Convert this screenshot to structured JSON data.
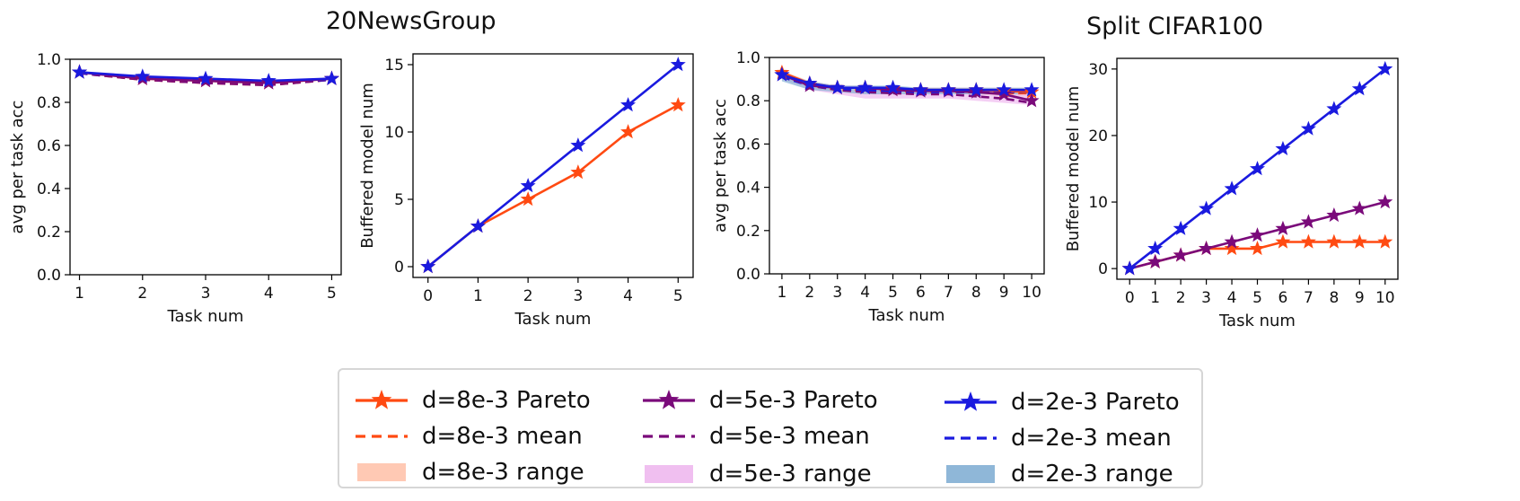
{
  "groups": [
    {
      "title": "20NewsGroup"
    },
    {
      "title": "Split CIFAR100"
    }
  ],
  "colors": {
    "d8": "#ff4a12",
    "d5": "#7a0a7a",
    "d2": "#1a1adf",
    "d8_range": "#ffc9b4",
    "d5_range": "#f0bff0",
    "d2_range": "#8fb7d8"
  },
  "legend": {
    "entries": [
      {
        "label": "d=8e-3 Pareto",
        "style": "pareto",
        "color": "#ff4a12"
      },
      {
        "label": "d=5e-3 Pareto",
        "style": "pareto",
        "color": "#7a0a7a"
      },
      {
        "label": "d=2e-3 Pareto",
        "style": "pareto",
        "color": "#1a1adf"
      },
      {
        "label": "d=8e-3 mean",
        "style": "mean",
        "color": "#ff4a12"
      },
      {
        "label": "d=5e-3 mean",
        "style": "mean",
        "color": "#7a0a7a"
      },
      {
        "label": "d=2e-3 mean",
        "style": "mean",
        "color": "#1a1adf"
      },
      {
        "label": "d=8e-3 range",
        "style": "range",
        "color": "#ffc9b4"
      },
      {
        "label": "d=5e-3 range",
        "style": "range",
        "color": "#f0bff0"
      },
      {
        "label": "d=2e-3 range",
        "style": "range",
        "color": "#8fb7d8"
      }
    ]
  },
  "chart_data": [
    {
      "type": "line",
      "group": "20NewsGroup",
      "xlabel": "Task num",
      "ylabel": "avg per task acc",
      "xlim": [
        0.85,
        5.15
      ],
      "ylim": [
        0.0,
        1.0
      ],
      "xticks": [
        1,
        2,
        3,
        4,
        5
      ],
      "yticks": [
        0.0,
        0.2,
        0.4,
        0.6,
        0.8,
        1.0
      ],
      "ytick_labels": [
        "0.0",
        "0.2",
        "0.4",
        "0.6",
        "0.8",
        "1.0"
      ],
      "series": [
        {
          "name": "d=8e-3 Pareto",
          "kind": "pareto",
          "color": "#ff4a12",
          "x": [
            1,
            2,
            3,
            4,
            5
          ],
          "values": [
            0.94,
            0.91,
            0.9,
            0.89,
            0.91
          ]
        },
        {
          "name": "d=8e-3 mean",
          "kind": "mean",
          "color": "#ff4a12",
          "x": [
            1,
            2,
            3,
            4,
            5
          ],
          "values": [
            0.935,
            0.905,
            0.89,
            0.88,
            0.905
          ]
        },
        {
          "name": "d=5e-3 Pareto",
          "kind": "pareto",
          "color": "#7a0a7a",
          "x": [
            1,
            2,
            3,
            4,
            5
          ],
          "values": [
            0.94,
            0.91,
            0.9,
            0.89,
            0.91
          ]
        },
        {
          "name": "d=5e-3 mean",
          "kind": "mean",
          "color": "#7a0a7a",
          "x": [
            1,
            2,
            3,
            4,
            5
          ],
          "values": [
            0.935,
            0.905,
            0.89,
            0.88,
            0.905
          ]
        },
        {
          "name": "d=2e-3 Pareto",
          "kind": "pareto",
          "color": "#1a1adf",
          "x": [
            1,
            2,
            3,
            4,
            5
          ],
          "values": [
            0.94,
            0.92,
            0.91,
            0.9,
            0.91
          ]
        },
        {
          "name": "d=2e-3 mean",
          "kind": "mean",
          "color": "#1a1adf",
          "x": [
            1,
            2,
            3,
            4,
            5
          ],
          "values": [
            0.935,
            0.915,
            0.9,
            0.895,
            0.905
          ]
        }
      ]
    },
    {
      "type": "line",
      "group": "20NewsGroup",
      "xlabel": "Task num",
      "ylabel": "Buffered model num",
      "xlim": [
        -0.3,
        5.3
      ],
      "ylim": [
        -0.8,
        15.8
      ],
      "xticks": [
        0,
        1,
        2,
        3,
        4,
        5
      ],
      "yticks": [
        0,
        5,
        10,
        15
      ],
      "series": [
        {
          "name": "d=8e-3 Pareto",
          "kind": "pareto",
          "color": "#ff4a12",
          "x": [
            0,
            1,
            2,
            3,
            4,
            5
          ],
          "values": [
            0,
            3,
            5,
            7,
            10,
            12
          ]
        },
        {
          "name": "d=2e-3 Pareto",
          "kind": "pareto",
          "color": "#1a1adf",
          "x": [
            0,
            1,
            2,
            3,
            4,
            5
          ],
          "values": [
            0,
            3,
            6,
            9,
            12,
            15
          ]
        }
      ]
    },
    {
      "type": "line",
      "group": "Split CIFAR100",
      "xlabel": "Task num",
      "ylabel": "avg per task acc",
      "xlim": [
        0.55,
        10.45
      ],
      "ylim": [
        0.0,
        1.0
      ],
      "xticks": [
        1,
        2,
        3,
        4,
        5,
        6,
        7,
        8,
        9,
        10
      ],
      "yticks": [
        0.0,
        0.2,
        0.4,
        0.6,
        0.8,
        1.0
      ],
      "ytick_labels": [
        "0.0",
        "0.2",
        "0.4",
        "0.6",
        "0.8",
        "1.0"
      ],
      "series": [
        {
          "name": "d=8e-3 range",
          "kind": "range",
          "color": "#ffc9b4",
          "x": [
            1,
            2,
            3,
            4,
            5,
            6,
            7,
            8,
            9,
            10
          ],
          "low": [
            0.9,
            0.86,
            0.84,
            0.83,
            0.83,
            0.83,
            0.83,
            0.83,
            0.82,
            0.82
          ],
          "high": [
            0.94,
            0.89,
            0.87,
            0.87,
            0.86,
            0.86,
            0.86,
            0.86,
            0.86,
            0.86
          ]
        },
        {
          "name": "d=5e-3 range",
          "kind": "range",
          "color": "#f0bff0",
          "x": [
            1,
            2,
            3,
            4,
            5,
            6,
            7,
            8,
            9,
            10
          ],
          "low": [
            0.9,
            0.85,
            0.83,
            0.81,
            0.81,
            0.81,
            0.81,
            0.8,
            0.79,
            0.78
          ],
          "high": [
            0.93,
            0.89,
            0.87,
            0.87,
            0.86,
            0.86,
            0.86,
            0.86,
            0.86,
            0.85
          ]
        },
        {
          "name": "d=2e-3 range",
          "kind": "range",
          "color": "#8fb7d8",
          "x": [
            1,
            2,
            3,
            4,
            5,
            6,
            7,
            8,
            9,
            10
          ],
          "low": [
            0.89,
            0.85,
            0.84,
            0.83,
            0.83,
            0.83,
            0.83,
            0.83,
            0.83,
            0.83
          ],
          "high": [
            0.93,
            0.89,
            0.87,
            0.87,
            0.87,
            0.86,
            0.86,
            0.86,
            0.86,
            0.86
          ]
        },
        {
          "name": "d=8e-3 mean",
          "kind": "mean",
          "color": "#ff4a12",
          "x": [
            1,
            2,
            3,
            4,
            5,
            6,
            7,
            8,
            9,
            10
          ],
          "values": [
            0.92,
            0.87,
            0.85,
            0.85,
            0.845,
            0.84,
            0.84,
            0.84,
            0.835,
            0.835
          ]
        },
        {
          "name": "d=5e-3 mean",
          "kind": "mean",
          "color": "#7a0a7a",
          "x": [
            1,
            2,
            3,
            4,
            5,
            6,
            7,
            8,
            9,
            10
          ],
          "values": [
            0.91,
            0.87,
            0.85,
            0.84,
            0.835,
            0.83,
            0.83,
            0.82,
            0.81,
            0.79
          ]
        },
        {
          "name": "d=2e-3 mean",
          "kind": "mean",
          "color": "#1a1adf",
          "x": [
            1,
            2,
            3,
            4,
            5,
            6,
            7,
            8,
            9,
            10
          ],
          "values": [
            0.91,
            0.87,
            0.855,
            0.85,
            0.845,
            0.84,
            0.84,
            0.84,
            0.84,
            0.84
          ]
        },
        {
          "name": "d=8e-3 Pareto",
          "kind": "pareto",
          "color": "#ff4a12",
          "x": [
            1,
            2,
            3,
            4,
            5,
            6,
            7,
            8,
            9,
            10
          ],
          "values": [
            0.93,
            0.88,
            0.86,
            0.86,
            0.855,
            0.85,
            0.85,
            0.85,
            0.845,
            0.84
          ]
        },
        {
          "name": "d=5e-3 Pareto",
          "kind": "pareto",
          "color": "#7a0a7a",
          "x": [
            1,
            2,
            3,
            4,
            5,
            6,
            7,
            8,
            9,
            10
          ],
          "values": [
            0.92,
            0.87,
            0.86,
            0.86,
            0.85,
            0.845,
            0.845,
            0.84,
            0.83,
            0.8
          ]
        },
        {
          "name": "d=2e-3 Pareto",
          "kind": "pareto",
          "color": "#1a1adf",
          "x": [
            1,
            2,
            3,
            4,
            5,
            6,
            7,
            8,
            9,
            10
          ],
          "values": [
            0.92,
            0.88,
            0.86,
            0.86,
            0.86,
            0.85,
            0.85,
            0.85,
            0.85,
            0.85
          ]
        }
      ]
    },
    {
      "type": "line",
      "group": "Split CIFAR100",
      "xlabel": "Task num",
      "ylabel": "Buffered model num",
      "xlim": [
        -0.5,
        10.5
      ],
      "ylim": [
        -1.6,
        31.6
      ],
      "xticks": [
        0,
        1,
        2,
        3,
        4,
        5,
        6,
        7,
        8,
        9,
        10
      ],
      "yticks": [
        0,
        10,
        20,
        30
      ],
      "series": [
        {
          "name": "d=8e-3 Pareto",
          "kind": "pareto",
          "color": "#ff4a12",
          "x": [
            0,
            1,
            2,
            3,
            4,
            5,
            6,
            7,
            8,
            9,
            10
          ],
          "values": [
            0,
            1,
            2,
            3,
            3,
            3,
            4,
            4,
            4,
            4,
            4
          ]
        },
        {
          "name": "d=5e-3 Pareto",
          "kind": "pareto",
          "color": "#7a0a7a",
          "x": [
            0,
            1,
            2,
            3,
            4,
            5,
            6,
            7,
            8,
            9,
            10
          ],
          "values": [
            0,
            1,
            2,
            3,
            4,
            5,
            6,
            7,
            8,
            9,
            10
          ]
        },
        {
          "name": "d=2e-3 Pareto",
          "kind": "pareto",
          "color": "#1a1adf",
          "x": [
            0,
            1,
            2,
            3,
            4,
            5,
            6,
            7,
            8,
            9,
            10
          ],
          "values": [
            0,
            3,
            6,
            9,
            12,
            15,
            18,
            21,
            24,
            27,
            30
          ]
        }
      ]
    }
  ]
}
